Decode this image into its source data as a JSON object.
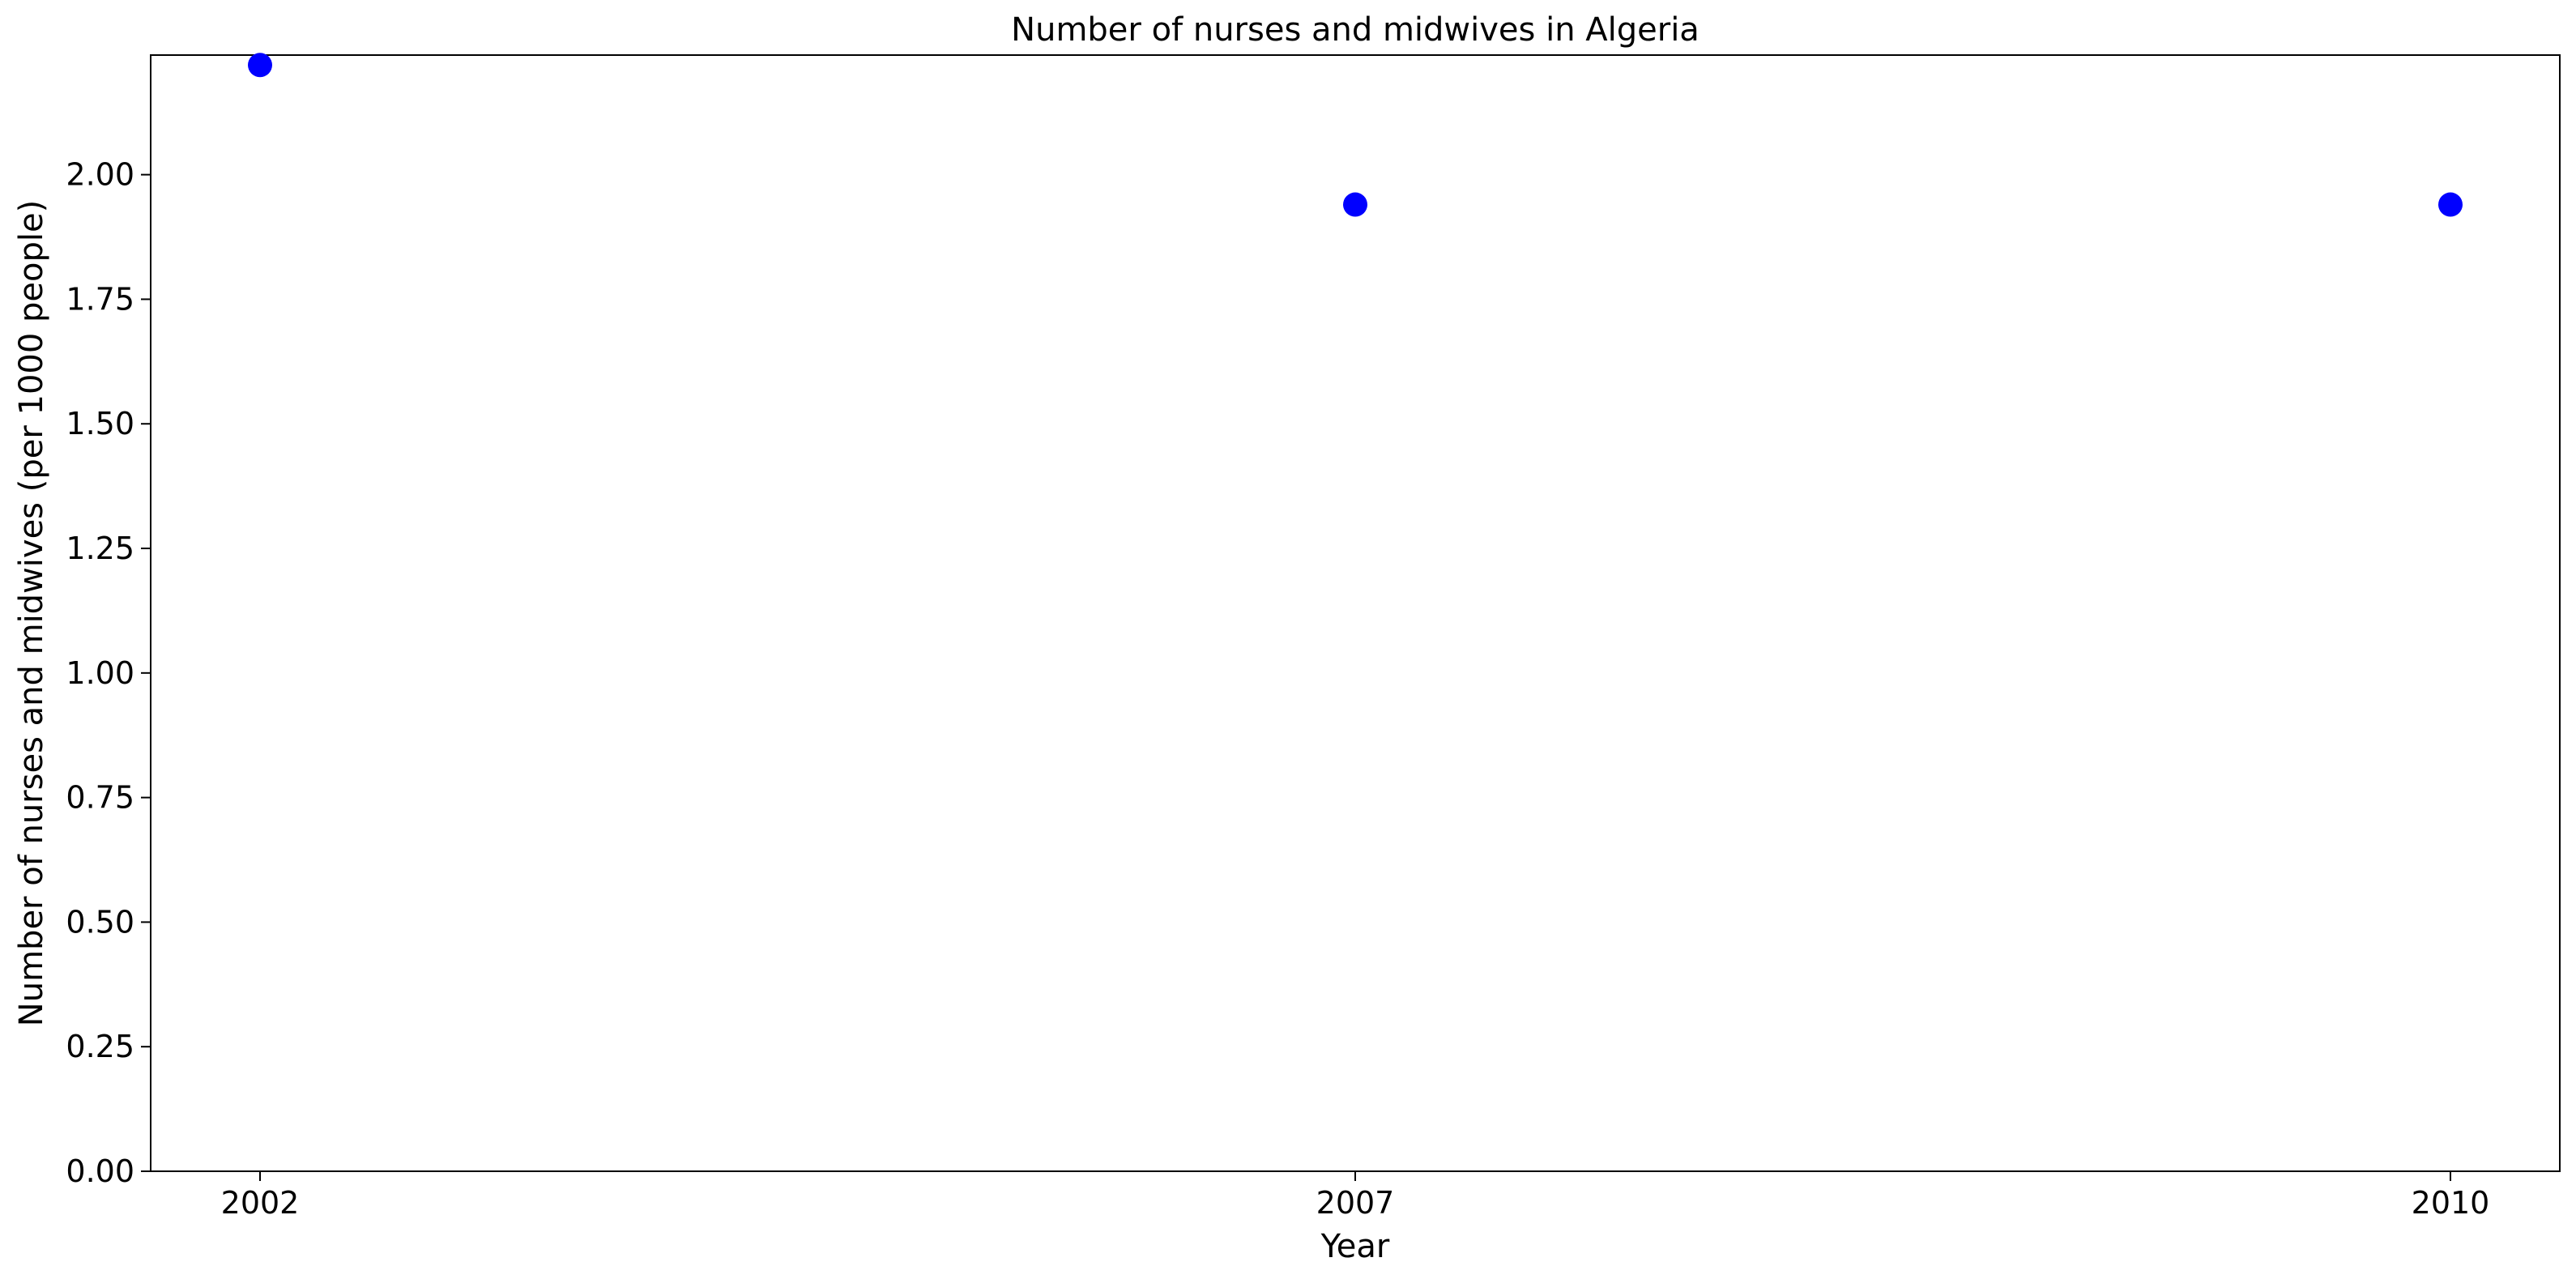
{
  "chart_data": {
    "type": "scatter",
    "title": "Number of nurses and midwives in Algeria",
    "xlabel": "Year",
    "ylabel": "Number of nurses and midwives (per 1000 people)",
    "categories": [
      "2002",
      "2007",
      "2010"
    ],
    "series": [
      {
        "values": [
          2.22,
          1.94,
          1.94
        ]
      }
    ],
    "ylim": [
      0,
      2.24
    ],
    "yticks": [
      "0.00",
      "0.25",
      "0.50",
      "0.75",
      "1.00",
      "1.25",
      "1.50",
      "1.75",
      "2.00"
    ],
    "marker_color": "#0000ff",
    "grid": false,
    "legend": "none"
  }
}
